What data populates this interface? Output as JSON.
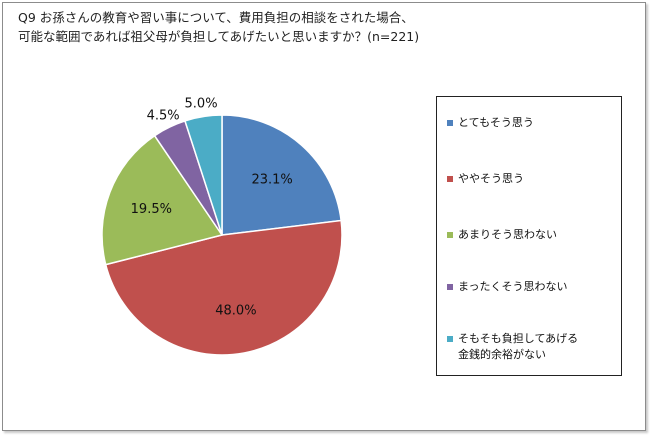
{
  "title_lines": [
    "Q9 お孫さんの教育や習い事について、費用負担の相談をされた場合、",
    "可能な範囲であれば祖父母が負担してあげたいと思いますか？(n=221)"
  ],
  "chart_data": {
    "type": "pie",
    "title": "Q9 お孫さんの教育や習い事について、費用負担の相談をされた場合、可能な範囲であれば祖父母が負担してあげたいと思いますか？(n=221)",
    "start_angle_deg": 0,
    "direction": "clockwise",
    "legend_position": "right",
    "slices": [
      {
        "label": "とてもそう思う",
        "value": 23.1,
        "value_label": "23.1%",
        "color": "#4f81bd"
      },
      {
        "label": "ややそう思う",
        "value": 48.0,
        "value_label": "48.0%",
        "color": "#c0504d"
      },
      {
        "label": "あまりそう思わない",
        "value": 19.5,
        "value_label": "19.5%",
        "color": "#9bbb59"
      },
      {
        "label": "まったくそう思わない",
        "value": 4.5,
        "value_label": "4.5%",
        "color": "#8064a2"
      },
      {
        "label": "そもそも負担してあげる金銭的余裕がない",
        "value": 5.0,
        "value_label": "5.0%",
        "color": "#4bacc6"
      }
    ]
  }
}
